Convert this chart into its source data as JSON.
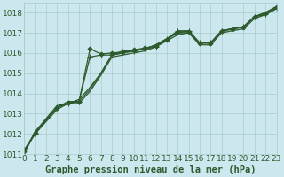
{
  "title": "Graphe pression niveau de la mer (hPa)",
  "bg_color": "#cce8ee",
  "grid_color": "#a8cccc",
  "line_color": "#2d5a2d",
  "marker_color": "#2d5a2d",
  "xlim": [
    0,
    23
  ],
  "ylim": [
    1011,
    1018.5
  ],
  "yticks": [
    1011,
    1012,
    1013,
    1014,
    1015,
    1016,
    1017,
    1018
  ],
  "xticks": [
    0,
    1,
    2,
    3,
    4,
    5,
    6,
    7,
    8,
    9,
    10,
    11,
    12,
    13,
    14,
    15,
    16,
    17,
    18,
    19,
    20,
    21,
    22,
    23
  ],
  "series": [
    {
      "x": [
        0,
        1,
        3,
        4,
        5,
        6,
        7,
        8,
        9,
        10,
        11,
        12,
        13,
        14,
        15,
        16,
        17,
        18,
        19,
        20,
        21,
        22,
        23
      ],
      "y": [
        1011.2,
        1012.0,
        1013.3,
        1013.5,
        1013.6,
        1015.8,
        1015.9,
        1015.9,
        1016.1,
        1016.1,
        1016.2,
        1016.3,
        1016.7,
        1017.1,
        1017.1,
        1016.5,
        1016.5,
        1017.1,
        1017.2,
        1017.3,
        1017.8,
        1017.9,
        1018.2
      ],
      "marker": "+",
      "markersize": 4,
      "lw": 0.9
    },
    {
      "x": [
        0,
        1,
        3,
        4,
        5,
        6,
        7,
        8,
        9,
        10,
        11,
        12,
        13,
        14,
        15,
        16,
        17,
        18,
        19,
        20,
        21,
        22,
        23
      ],
      "y": [
        1011.1,
        1012.1,
        1013.4,
        1013.5,
        1013.7,
        1014.3,
        1015.0,
        1015.9,
        1016.0,
        1016.1,
        1016.2,
        1016.4,
        1016.7,
        1017.0,
        1017.0,
        1016.5,
        1016.5,
        1017.1,
        1017.2,
        1017.3,
        1017.8,
        1018.0,
        1018.3
      ],
      "marker": "None",
      "markersize": 0,
      "lw": 0.9
    },
    {
      "x": [
        0,
        1,
        3,
        4,
        5,
        6,
        7,
        8,
        9,
        10,
        11,
        12,
        13,
        14,
        15,
        16,
        17,
        18,
        19,
        20,
        21,
        22,
        23
      ],
      "y": [
        1011.0,
        1012.1,
        1013.3,
        1013.6,
        1013.6,
        1014.2,
        1015.0,
        1015.9,
        1016.0,
        1016.1,
        1016.2,
        1016.4,
        1016.7,
        1017.0,
        1017.1,
        1016.5,
        1016.5,
        1017.1,
        1017.2,
        1017.3,
        1017.8,
        1018.0,
        1018.3
      ],
      "marker": "None",
      "markersize": 0,
      "lw": 0.9
    },
    {
      "x": [
        0,
        1,
        3,
        4,
        5,
        6,
        7,
        8,
        9,
        10,
        11,
        12,
        13,
        14,
        15,
        16,
        17,
        18,
        19,
        20,
        21,
        22,
        23
      ],
      "y": [
        1011.1,
        1012.0,
        1013.2,
        1013.5,
        1013.5,
        1014.1,
        1014.9,
        1015.8,
        1015.9,
        1016.0,
        1016.1,
        1016.3,
        1016.6,
        1016.9,
        1017.0,
        1016.4,
        1016.4,
        1017.0,
        1017.1,
        1017.2,
        1017.7,
        1017.9,
        1018.2
      ],
      "marker": "None",
      "markersize": 0,
      "lw": 0.9
    },
    {
      "x": [
        0,
        1,
        3,
        4,
        5,
        6,
        7,
        8,
        9,
        10,
        11,
        12,
        13,
        14,
        15,
        16,
        17,
        18,
        19,
        20,
        21,
        22,
        23
      ],
      "y": [
        1011.15,
        1012.05,
        1013.3,
        1013.52,
        1013.6,
        1016.2,
        1015.95,
        1016.0,
        1016.05,
        1016.15,
        1016.25,
        1016.35,
        1016.65,
        1017.05,
        1017.05,
        1016.48,
        1016.48,
        1017.08,
        1017.18,
        1017.28,
        1017.78,
        1017.95,
        1018.25
      ],
      "marker": "D",
      "markersize": 2.5,
      "lw": 0.9
    }
  ],
  "font_color": "#2d5a2d",
  "font_size": 6.5,
  "title_fontsize": 7.5
}
